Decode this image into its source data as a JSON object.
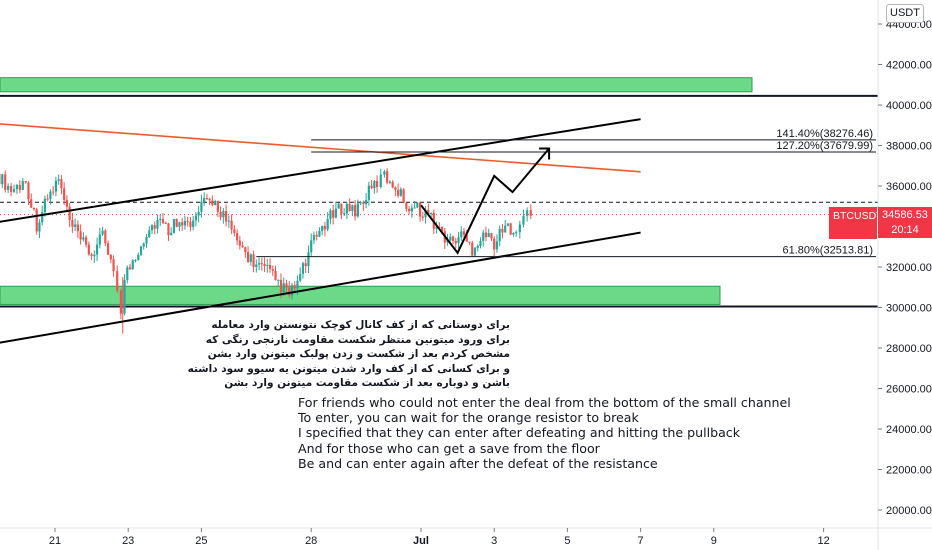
{
  "chart_data": {
    "type": "candlestick",
    "symbol": "BTCUSDT",
    "currency": "USDT",
    "last_price": "34586.53",
    "countdown": "20:14",
    "ylim": [
      19200,
      45500
    ],
    "y_ticks": [
      "44000.00",
      "42000.00",
      "40000.00",
      "38000.00",
      "36000.00",
      "34000.00",
      "32000.00",
      "30000.00",
      "28000.00",
      "26000.00",
      "24000.00",
      "22000.00",
      "20000.00"
    ],
    "x_ticks": [
      "21",
      "23",
      "25",
      "28",
      "Jul",
      "3",
      "5",
      "7",
      "9",
      "12"
    ],
    "fib_levels": [
      {
        "label": "141.40%(38276.46)",
        "price": 38276.46
      },
      {
        "label": "127.20%(37679.99)",
        "price": 37679.99
      },
      {
        "label": "61.80%(32513.81)",
        "price": 32513.81
      }
    ],
    "zones": [
      {
        "name": "upper-green-zone",
        "low": 40650,
        "high": 41350,
        "color": "#52d273"
      },
      {
        "name": "lower-green-zone",
        "low": 30150,
        "high": 31050,
        "color": "#52d273"
      }
    ],
    "horizontal_lines": [
      {
        "name": "upper-resistance",
        "price": 40450,
        "style": "solid"
      },
      {
        "name": "lower-support",
        "price": 30050,
        "style": "solid"
      },
      {
        "name": "dashed-level",
        "price": 35200,
        "style": "dashed"
      }
    ],
    "trendlines": [
      {
        "name": "orange-resistance",
        "color": "#f05a28",
        "points": [
          [
            "Jun 17",
            39400
          ],
          [
            "Jul 7",
            36700
          ]
        ]
      },
      {
        "name": "channel-top",
        "color": "#000000",
        "points": [
          [
            "Jun 18",
            33800
          ],
          [
            "Jul 7",
            39300
          ]
        ]
      },
      {
        "name": "channel-bottom",
        "color": "#000000",
        "points": [
          [
            "Jun 18",
            27800
          ],
          [
            "Jul 7",
            33700
          ]
        ]
      }
    ],
    "projection": [
      [
        "Jul 1",
        35050
      ],
      [
        "Jul 2",
        32700
      ],
      [
        "Jul 3",
        36500
      ],
      [
        "Jul 3.5",
        35700
      ],
      [
        "Jul 4.5",
        37850
      ]
    ],
    "colors": {
      "up": "#26a69a",
      "down": "#ef5350",
      "zone": "#52d273",
      "orange": "#f05a28",
      "price_badge": "#f23645"
    }
  },
  "annotations": {
    "persian": [
      "برای دوستانی که از کف کانال کوچک نتونستن وارد معامله",
      "برای ورود میتونین منتظر شکست مقاومت نارنجی رنگی که",
      "مشخص کردم بعد از شکست و زدن پولبک میتونن وارد بشن",
      "و برای کسانی که از کف وارد شدن میتونن یه سیوو سود داشته",
      "باشن و دوباره بعد از شکست مقاومت میتونن وارد بشن"
    ],
    "english": [
      "For friends who could not enter the deal from the bottom of the small channel",
      "To enter, you can wait for the orange resistor to break",
      "I specified that they can enter after defeating and hitting the pullback",
      "And for those who can get a save from the floor",
      "Be and can enter again after the defeat of the resistance"
    ]
  }
}
